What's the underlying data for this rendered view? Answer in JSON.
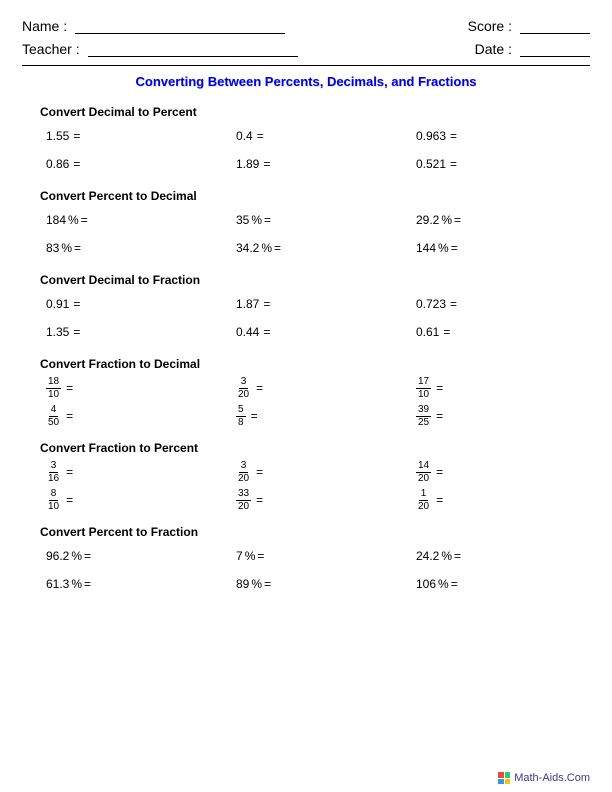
{
  "header": {
    "name_label": "Name :",
    "teacher_label": "Teacher :",
    "score_label": "Score :",
    "date_label": "Date :"
  },
  "title": "Converting Between Percents, Decimals, and Fractions",
  "sections": [
    {
      "title": "Convert Decimal to Percent",
      "type": "plain",
      "rows": [
        [
          "1.55",
          "0.4",
          "0.963"
        ],
        [
          "0.86",
          "1.89",
          "0.521"
        ]
      ]
    },
    {
      "title": "Convert Percent to Decimal",
      "type": "percent",
      "rows": [
        [
          "184",
          "35",
          "29.2"
        ],
        [
          "83",
          "34.2",
          "144"
        ]
      ]
    },
    {
      "title": "Convert Decimal to Fraction",
      "type": "plain",
      "rows": [
        [
          "0.91",
          "1.87",
          "0.723"
        ],
        [
          "1.35",
          "0.44",
          "0.61"
        ]
      ]
    },
    {
      "title": "Convert Fraction to Decimal",
      "type": "fraction",
      "rows": [
        [
          {
            "n": "18",
            "d": "10"
          },
          {
            "n": "3",
            "d": "20"
          },
          {
            "n": "17",
            "d": "10"
          }
        ],
        [
          {
            "n": "4",
            "d": "50"
          },
          {
            "n": "5",
            "d": "8"
          },
          {
            "n": "39",
            "d": "25"
          }
        ]
      ]
    },
    {
      "title": "Convert Fraction to Percent",
      "type": "fraction",
      "rows": [
        [
          {
            "n": "3",
            "d": "16"
          },
          {
            "n": "3",
            "d": "20"
          },
          {
            "n": "14",
            "d": "20"
          }
        ],
        [
          {
            "n": "8",
            "d": "10"
          },
          {
            "n": "33",
            "d": "20"
          },
          {
            "n": "1",
            "d": "20"
          }
        ]
      ]
    },
    {
      "title": "Convert Percent to Fraction",
      "type": "percent",
      "rows": [
        [
          "96.2",
          "7",
          "24.2"
        ],
        [
          "61.3",
          "89",
          "106"
        ]
      ]
    }
  ],
  "footer": "Math-Aids.Com",
  "symbols": {
    "eq": " =",
    "pct": " %"
  }
}
